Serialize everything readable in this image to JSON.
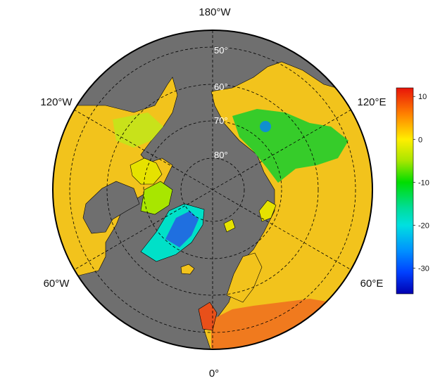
{
  "map": {
    "projection": "north-polar-stereographic",
    "background_color": "#6f6f6f",
    "longitude_labels": [
      "180°W",
      "120°W",
      "120°E",
      "60°W",
      "60°E",
      "0°"
    ],
    "latitude_labels": [
      "50°",
      "60°",
      "70°",
      "80°"
    ],
    "graticule_style": "dashed"
  },
  "colorbar": {
    "ticks": [
      "10",
      "0",
      "-10",
      "-20",
      "-30"
    ],
    "tick_values": [
      10,
      0,
      -10,
      -20,
      -30
    ],
    "range": [
      -36,
      12
    ],
    "gradient": [
      {
        "value": 12,
        "color": "#e8140a"
      },
      {
        "value": 6,
        "color": "#ff7f00"
      },
      {
        "value": 0,
        "color": "#ffee00"
      },
      {
        "value": -5,
        "color": "#a8e600"
      },
      {
        "value": -10,
        "color": "#00dd00"
      },
      {
        "value": -16,
        "color": "#00dd99"
      },
      {
        "value": -20,
        "color": "#00e0e0"
      },
      {
        "value": -26,
        "color": "#0090ff"
      },
      {
        "value": -31,
        "color": "#0040ff"
      },
      {
        "value": -36,
        "color": "#0000b0"
      }
    ]
  },
  "field_colors": {
    "warm_land": "#f2c31c",
    "very_warm": "#f07a1e",
    "hot_europe": "#e8501a",
    "neutral_arctic": "#e6e200",
    "cool_siberia": "#36cc2a",
    "cold_greenland_edge": "#00e0c8",
    "cold_greenland_core": "#1f6fe0",
    "cold_spot": "#1090d0",
    "ocean": "#6f6f6f",
    "border": "#000000"
  }
}
